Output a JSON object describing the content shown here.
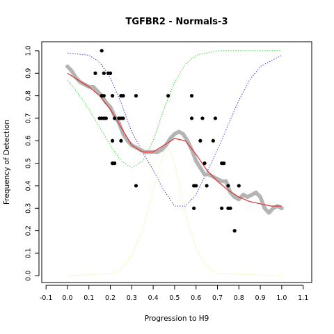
{
  "chart_data": {
    "type": "scatter",
    "title": "TGFBR2 - Normals-3",
    "xlabel": "Progression to H9",
    "ylabel": "Frequency of Detection",
    "xlim": [
      -0.12,
      1.14
    ],
    "ylim": [
      -0.03,
      1.04
    ],
    "xticks": [
      "-0.1",
      "0.0",
      "0.1",
      "0.2",
      "0.3",
      "0.4",
      "0.5",
      "0.6",
      "0.7",
      "0.8",
      "0.9",
      "1.0",
      "1.1"
    ],
    "xtick_values": [
      -0.1,
      0.0,
      0.1,
      0.2,
      0.3,
      0.4,
      0.5,
      0.6,
      0.7,
      0.8,
      0.9,
      1.0,
      1.1
    ],
    "yticks": [
      "0.0",
      "0.1",
      "0.2",
      "0.3",
      "0.4",
      "0.5",
      "0.6",
      "0.7",
      "0.8",
      "0.9",
      "1.0"
    ],
    "ytick_values": [
      0.0,
      0.1,
      0.2,
      0.3,
      0.4,
      0.5,
      0.6,
      0.7,
      0.8,
      0.9,
      1.0
    ],
    "grid": false,
    "legend": "none",
    "series": [
      {
        "kind": "points",
        "color": "#000000",
        "points": [
          [
            0.16,
            1.0
          ],
          [
            0.13,
            0.9
          ],
          [
            0.17,
            0.9
          ],
          [
            0.19,
            0.9
          ],
          [
            0.2,
            0.9
          ],
          [
            0.16,
            0.8
          ],
          [
            0.17,
            0.8
          ],
          [
            0.21,
            0.8
          ],
          [
            0.25,
            0.8
          ],
          [
            0.26,
            0.8
          ],
          [
            0.32,
            0.8
          ],
          [
            0.47,
            0.8
          ],
          [
            0.58,
            0.8
          ],
          [
            0.15,
            0.7
          ],
          [
            0.16,
            0.7
          ],
          [
            0.17,
            0.7
          ],
          [
            0.18,
            0.7
          ],
          [
            0.22,
            0.7
          ],
          [
            0.24,
            0.7
          ],
          [
            0.25,
            0.7
          ],
          [
            0.26,
            0.7
          ],
          [
            0.58,
            0.7
          ],
          [
            0.63,
            0.7
          ],
          [
            0.69,
            0.7
          ],
          [
            0.21,
            0.6
          ],
          [
            0.25,
            0.6
          ],
          [
            0.62,
            0.6
          ],
          [
            0.68,
            0.6
          ],
          [
            0.21,
            0.5
          ],
          [
            0.22,
            0.5
          ],
          [
            0.64,
            0.5
          ],
          [
            0.72,
            0.5
          ],
          [
            0.73,
            0.5
          ],
          [
            0.32,
            0.4
          ],
          [
            0.59,
            0.4
          ],
          [
            0.6,
            0.4
          ],
          [
            0.65,
            0.4
          ],
          [
            0.75,
            0.4
          ],
          [
            0.8,
            0.4
          ],
          [
            0.59,
            0.3
          ],
          [
            0.72,
            0.3
          ],
          [
            0.75,
            0.3
          ],
          [
            0.76,
            0.3
          ],
          [
            0.78,
            0.2
          ]
        ]
      },
      {
        "kind": "smooth",
        "color": "#b4b4b4",
        "points": [
          [
            0.0,
            0.93
          ],
          [
            0.02,
            0.91
          ],
          [
            0.04,
            0.88
          ],
          [
            0.06,
            0.86
          ],
          [
            0.08,
            0.85
          ],
          [
            0.1,
            0.84
          ],
          [
            0.12,
            0.84
          ],
          [
            0.14,
            0.82
          ],
          [
            0.16,
            0.8
          ],
          [
            0.18,
            0.77
          ],
          [
            0.2,
            0.75
          ],
          [
            0.22,
            0.71
          ],
          [
            0.24,
            0.68
          ],
          [
            0.26,
            0.63
          ],
          [
            0.28,
            0.6
          ],
          [
            0.3,
            0.58
          ],
          [
            0.32,
            0.57
          ],
          [
            0.34,
            0.56
          ],
          [
            0.36,
            0.55
          ],
          [
            0.38,
            0.55
          ],
          [
            0.4,
            0.55
          ],
          [
            0.42,
            0.55
          ],
          [
            0.44,
            0.56
          ],
          [
            0.46,
            0.58
          ],
          [
            0.48,
            0.61
          ],
          [
            0.5,
            0.63
          ],
          [
            0.52,
            0.64
          ],
          [
            0.54,
            0.63
          ],
          [
            0.56,
            0.6
          ],
          [
            0.58,
            0.56
          ],
          [
            0.6,
            0.51
          ],
          [
            0.62,
            0.48
          ],
          [
            0.64,
            0.45
          ],
          [
            0.66,
            0.45
          ],
          [
            0.68,
            0.44
          ],
          [
            0.7,
            0.43
          ],
          [
            0.72,
            0.42
          ],
          [
            0.74,
            0.42
          ],
          [
            0.76,
            0.37
          ],
          [
            0.78,
            0.35
          ],
          [
            0.8,
            0.34
          ],
          [
            0.82,
            0.36
          ],
          [
            0.84,
            0.35
          ],
          [
            0.86,
            0.36
          ],
          [
            0.88,
            0.37
          ],
          [
            0.9,
            0.35
          ],
          [
            0.92,
            0.3
          ],
          [
            0.94,
            0.28
          ],
          [
            0.96,
            0.3
          ],
          [
            0.98,
            0.31
          ],
          [
            1.0,
            0.3
          ]
        ]
      },
      {
        "kind": "fit",
        "color": "#e03030",
        "points": [
          [
            0.0,
            0.9
          ],
          [
            0.05,
            0.87
          ],
          [
            0.1,
            0.84
          ],
          [
            0.15,
            0.8
          ],
          [
            0.2,
            0.74
          ],
          [
            0.25,
            0.66
          ],
          [
            0.3,
            0.58
          ],
          [
            0.35,
            0.55
          ],
          [
            0.4,
            0.55
          ],
          [
            0.45,
            0.58
          ],
          [
            0.5,
            0.61
          ],
          [
            0.55,
            0.6
          ],
          [
            0.6,
            0.54
          ],
          [
            0.65,
            0.47
          ],
          [
            0.7,
            0.42
          ],
          [
            0.75,
            0.38
          ],
          [
            0.8,
            0.35
          ],
          [
            0.85,
            0.33
          ],
          [
            0.9,
            0.32
          ],
          [
            0.95,
            0.31
          ],
          [
            1.0,
            0.31
          ]
        ]
      },
      {
        "kind": "component-1",
        "color": "#33dd33",
        "points": [
          [
            0.0,
            0.87
          ],
          [
            0.05,
            0.81
          ],
          [
            0.1,
            0.74
          ],
          [
            0.15,
            0.66
          ],
          [
            0.2,
            0.58
          ],
          [
            0.25,
            0.51
          ],
          [
            0.3,
            0.48
          ],
          [
            0.35,
            0.51
          ],
          [
            0.4,
            0.6
          ],
          [
            0.45,
            0.74
          ],
          [
            0.5,
            0.86
          ],
          [
            0.55,
            0.94
          ],
          [
            0.6,
            0.98
          ],
          [
            0.7,
            1.0
          ],
          [
            0.8,
            1.0
          ],
          [
            1.0,
            1.0
          ]
        ]
      },
      {
        "kind": "component-2",
        "color": "#4040e0",
        "points": [
          [
            0.0,
            0.99
          ],
          [
            0.1,
            0.98
          ],
          [
            0.15,
            0.95
          ],
          [
            0.2,
            0.88
          ],
          [
            0.25,
            0.77
          ],
          [
            0.3,
            0.64
          ],
          [
            0.35,
            0.55
          ],
          [
            0.4,
            0.47
          ],
          [
            0.45,
            0.38
          ],
          [
            0.5,
            0.31
          ],
          [
            0.55,
            0.31
          ],
          [
            0.6,
            0.36
          ],
          [
            0.65,
            0.46
          ],
          [
            0.7,
            0.56
          ],
          [
            0.75,
            0.67
          ],
          [
            0.8,
            0.78
          ],
          [
            0.85,
            0.87
          ],
          [
            0.9,
            0.93
          ],
          [
            1.0,
            0.98
          ]
        ]
      },
      {
        "kind": "component-3",
        "color": "#f0f088",
        "points": [
          [
            0.0,
            0.0
          ],
          [
            0.2,
            0.01
          ],
          [
            0.25,
            0.03
          ],
          [
            0.3,
            0.09
          ],
          [
            0.35,
            0.2
          ],
          [
            0.4,
            0.38
          ],
          [
            0.45,
            0.55
          ],
          [
            0.47,
            0.57
          ],
          [
            0.5,
            0.5
          ],
          [
            0.55,
            0.28
          ],
          [
            0.6,
            0.12
          ],
          [
            0.65,
            0.04
          ],
          [
            0.7,
            0.01
          ],
          [
            1.0,
            0.0
          ]
        ]
      }
    ]
  }
}
